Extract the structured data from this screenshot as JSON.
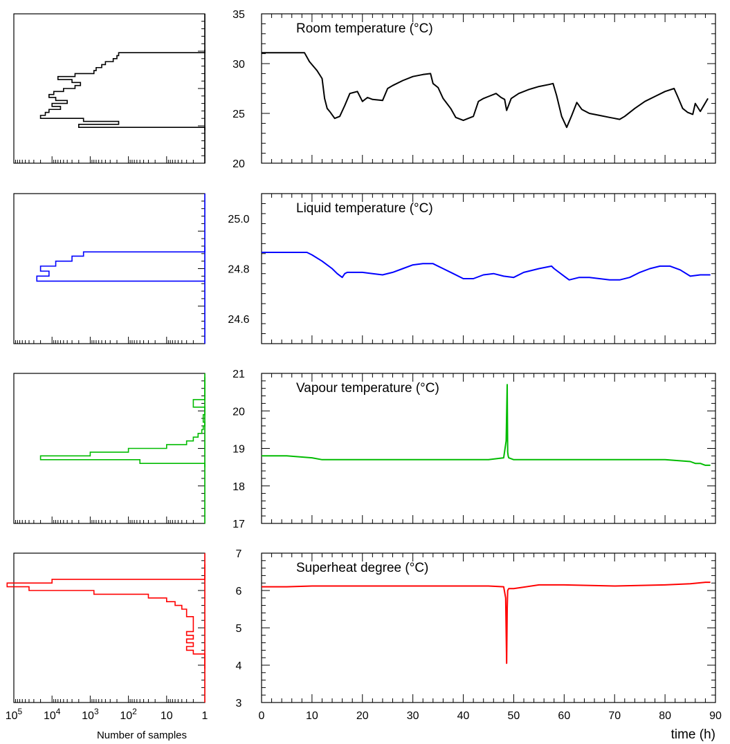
{
  "chart_data": [
    {
      "type": "line",
      "title": "Room temperature (°C)",
      "color": "#000000",
      "ylim": [
        20,
        35
      ],
      "yticks": [
        20,
        25,
        30,
        35
      ],
      "xlim": [
        0,
        90
      ],
      "xticks": [
        0,
        10,
        20,
        30,
        40,
        50,
        60,
        70,
        80,
        90
      ],
      "series": [
        {
          "x": [
            0,
            8.5,
            9.5,
            11,
            12,
            12.5,
            13,
            13.5,
            14.5,
            15.5,
            16.5,
            17.5,
            19,
            20,
            21,
            22,
            24,
            25,
            26,
            28,
            30,
            32,
            33.5,
            34,
            35,
            36,
            37.5,
            38.5,
            40,
            41,
            42,
            43,
            44,
            45,
            46.5,
            47.5,
            48.2,
            48.6,
            49.5,
            51,
            53,
            55,
            57,
            57.8,
            58.5,
            59.5,
            60.5,
            61.5,
            62.5,
            63.5,
            65,
            67,
            69,
            70,
            71,
            72,
            74,
            76,
            78,
            80,
            81.8,
            82.5,
            83.5,
            84.5,
            85.5,
            86,
            87,
            88.5
          ],
          "y": [
            31.1,
            31.1,
            30.2,
            29.3,
            28.5,
            26.5,
            25.5,
            25.2,
            24.5,
            24.7,
            25.8,
            27.0,
            27.2,
            26.2,
            26.6,
            26.4,
            26.3,
            27.5,
            27.8,
            28.3,
            28.7,
            28.9,
            29.0,
            28.0,
            27.6,
            26.5,
            25.5,
            24.6,
            24.3,
            24.5,
            24.7,
            26.2,
            26.5,
            26.7,
            27.0,
            26.6,
            26.4,
            25.3,
            26.5,
            27.0,
            27.4,
            27.7,
            27.9,
            28.0,
            26.8,
            24.7,
            23.6,
            24.8,
            26.1,
            25.4,
            25.0,
            24.8,
            24.6,
            24.5,
            24.4,
            24.7,
            25.5,
            26.2,
            26.7,
            27.2,
            27.5,
            26.7,
            25.5,
            25.1,
            24.9,
            26.0,
            25.2,
            26.5
          ]
        }
      ],
      "histogram": {
        "xscale": "log",
        "xlim_reversed": [
          100000,
          1
        ],
        "bins_lower_edges": [
          23.3,
          23.6,
          23.9,
          24.2,
          24.5,
          24.8,
          25.1,
          25.4,
          25.7,
          26.0,
          26.3,
          26.6,
          26.9,
          27.2,
          27.5,
          27.8,
          28.1,
          28.4,
          28.7,
          29.0,
          29.3,
          29.6,
          29.9,
          30.2,
          30.5,
          30.8,
          31.1
        ],
        "counts": [
          1,
          2000,
          180,
          1500,
          20000,
          15000,
          12000,
          6000,
          10000,
          4000,
          8000,
          12000,
          9000,
          5000,
          2500,
          1800,
          3000,
          7000,
          2500,
          800,
          700,
          500,
          400,
          250,
          200,
          180,
          1
        ]
      }
    },
    {
      "type": "line",
      "title": "Liquid temperature (°C)",
      "color": "#0000ff",
      "ylim": [
        24.5,
        25.1
      ],
      "yticks": [
        24.6,
        24.8,
        25.0
      ],
      "xlim": [
        0,
        90
      ],
      "series": [
        {
          "x": [
            0,
            9,
            10,
            12,
            14,
            15,
            16,
            16.5,
            17,
            20,
            22,
            24,
            26,
            28,
            30,
            32,
            34,
            36,
            38,
            40,
            42,
            44,
            46,
            48,
            50,
            52,
            55,
            57.5,
            58,
            60,
            61,
            63,
            65,
            67,
            69,
            71,
            73,
            75,
            77,
            79,
            81,
            83,
            85,
            87,
            89
          ],
          "y": [
            24.865,
            24.865,
            24.855,
            24.83,
            24.8,
            24.78,
            24.765,
            24.78,
            24.785,
            24.785,
            24.78,
            24.775,
            24.785,
            24.8,
            24.815,
            24.82,
            24.82,
            24.8,
            24.78,
            24.76,
            24.76,
            24.775,
            24.78,
            24.77,
            24.765,
            24.785,
            24.8,
            24.81,
            24.8,
            24.77,
            24.755,
            24.765,
            24.765,
            24.76,
            24.755,
            24.755,
            24.765,
            24.785,
            24.8,
            24.81,
            24.81,
            24.795,
            24.77,
            24.775,
            24.775
          ]
        }
      ],
      "histogram": {
        "xscale": "log",
        "xlim_reversed": [
          100000,
          1
        ],
        "bins_lower_edges": [
          24.75,
          24.77,
          24.79,
          24.81,
          24.83,
          24.85,
          24.867
        ],
        "counts": [
          25000,
          12000,
          20000,
          8000,
          3000,
          1500,
          1
        ]
      }
    },
    {
      "type": "line",
      "title": "Vapour temperature (°C)",
      "color": "#00bb00",
      "ylim": [
        17,
        21
      ],
      "yticks": [
        17,
        18,
        19,
        20,
        21
      ],
      "xlim": [
        0,
        90
      ],
      "series": [
        {
          "x": [
            0,
            5,
            10,
            12,
            20,
            30,
            40,
            45,
            48,
            48.5,
            48.7,
            48.8,
            48.9,
            49,
            50,
            55,
            60,
            70,
            80,
            85,
            86,
            87,
            88,
            89
          ],
          "y": [
            18.8,
            18.8,
            18.75,
            18.7,
            18.7,
            18.7,
            18.7,
            18.7,
            18.75,
            19.2,
            20.7,
            18.9,
            18.8,
            18.75,
            18.7,
            18.7,
            18.7,
            18.7,
            18.7,
            18.65,
            18.6,
            18.6,
            18.55,
            18.55
          ]
        }
      ],
      "histogram": {
        "xscale": "log",
        "xlim_reversed": [
          100000,
          1
        ],
        "bins_lower_edges": [
          18.5,
          18.6,
          18.7,
          18.8,
          18.9,
          19.0,
          19.1,
          19.2,
          19.3,
          19.4,
          19.5,
          19.6,
          19.7,
          19.9,
          20.0,
          20.1,
          20.2,
          20.3,
          20.8
        ],
        "counts": [
          1,
          50,
          20000,
          1000,
          100,
          10,
          3,
          2,
          1.5,
          1.2,
          1.1,
          1,
          1.1,
          1,
          1,
          2,
          2,
          1,
          1
        ]
      }
    },
    {
      "type": "line",
      "title": "Superheat degree (°C)",
      "color": "#ff0000",
      "ylim": [
        3,
        7
      ],
      "yticks": [
        3,
        4,
        5,
        6,
        7
      ],
      "xlim": [
        0,
        90
      ],
      "xlabel": "time (h)",
      "series": [
        {
          "x": [
            0,
            5,
            10,
            20,
            30,
            40,
            45,
            48,
            48.4,
            48.6,
            48.7,
            48.8,
            49,
            50,
            55,
            60,
            70,
            80,
            85,
            88,
            89
          ],
          "y": [
            6.1,
            6.1,
            6.12,
            6.12,
            6.12,
            6.12,
            6.12,
            6.1,
            5.8,
            4.05,
            5.5,
            6.0,
            6.05,
            6.05,
            6.15,
            6.15,
            6.12,
            6.15,
            6.18,
            6.22,
            6.22
          ]
        }
      ],
      "histogram": {
        "xscale": "log",
        "xlim_reversed": [
          100000,
          1
        ],
        "xticks": [
          100000,
          10000,
          1000,
          100,
          10,
          1
        ],
        "xtick_labels": [
          "10^5",
          "10^4",
          "10^3",
          "10^2",
          "10",
          "1"
        ],
        "xlabel": "Number of samples",
        "bins_lower_edges": [
          3.9,
          4.3,
          4.4,
          4.5,
          4.6,
          4.7,
          4.8,
          4.9,
          5.0,
          5.1,
          5.2,
          5.3,
          5.4,
          5.5,
          5.6,
          5.7,
          5.8,
          5.9,
          6.0,
          6.1,
          6.2,
          6.3
        ],
        "counts": [
          1,
          2,
          3,
          2,
          3,
          2,
          3,
          2,
          2,
          2,
          2,
          3,
          3,
          4,
          6,
          10,
          30,
          800,
          40000,
          150000,
          10000,
          1
        ]
      }
    }
  ]
}
